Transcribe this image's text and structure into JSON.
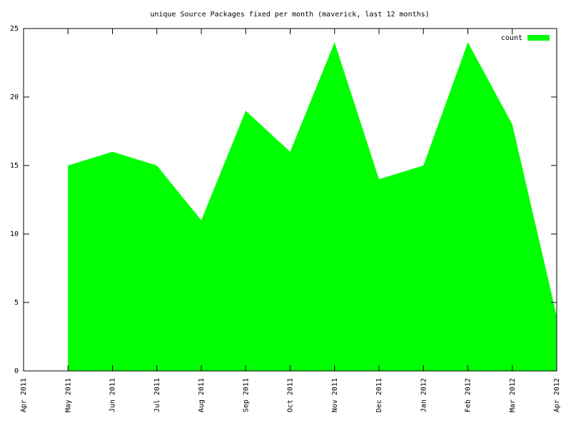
{
  "chart_data": {
    "type": "area",
    "title": "unique Source Packages fixed per month (maverick, last 12 months)",
    "categories": [
      "Apr 2011",
      "May 2011",
      "Jun 2011",
      "Jul 2011",
      "Aug 2011",
      "Sep 2011",
      "Oct 2011",
      "Nov 2011",
      "Dec 2011",
      "Jan 2012",
      "Feb 2012",
      "Mar 2012",
      "Apr 2012"
    ],
    "series": [
      {
        "name": "count",
        "color": "#00ff00",
        "values": [
          null,
          15,
          16,
          15,
          11,
          19,
          16,
          24,
          14,
          15,
          24,
          18,
          4
        ]
      }
    ],
    "ylim": [
      0,
      25
    ],
    "yticks": [
      0,
      5,
      10,
      15,
      20,
      25
    ],
    "legend": "top-right"
  }
}
